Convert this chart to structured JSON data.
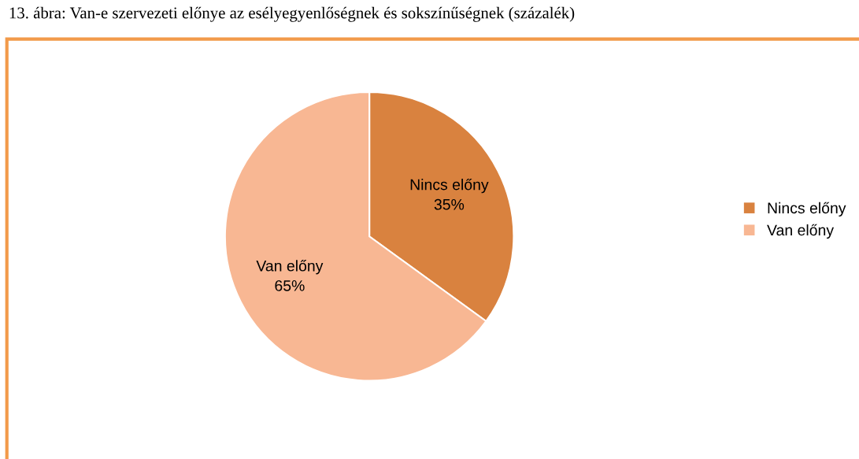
{
  "chart_data": {
    "type": "pie",
    "title": "13. ábra: Van-e szervezeti előnye az esélyegyenlőségnek és sokszínűségnek (százalék)",
    "categories": [
      "Nincs előny",
      "Van előny"
    ],
    "values": [
      35,
      65
    ],
    "colors": [
      "#d9823f",
      "#f8b793"
    ],
    "value_labels": [
      "35%",
      "65%"
    ],
    "legend": "right"
  }
}
